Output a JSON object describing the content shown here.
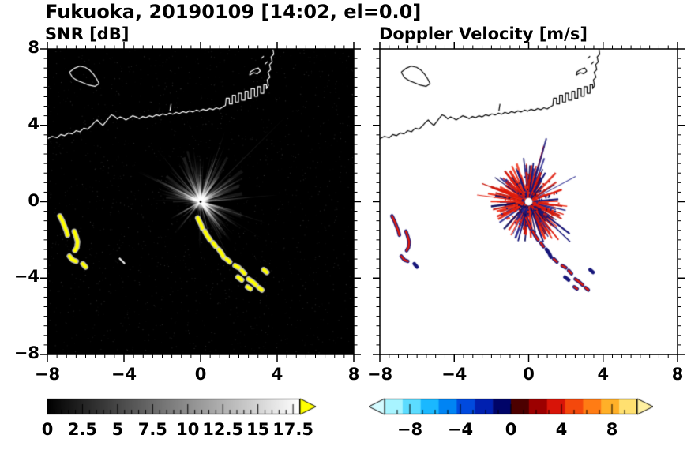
{
  "title": "Fukuoka, 20190109 [14:02, el=0.0]",
  "panels": [
    {
      "title": "SNR [dB]",
      "xtick_labels": [
        "−8",
        "−4",
        "0",
        "4",
        "8"
      ],
      "ytick_labels": [
        "8",
        "4",
        "0",
        "−4",
        "−8"
      ],
      "colorbar_labels": [
        "0",
        "2.5",
        "5",
        "7.5",
        "10",
        "12.5",
        "15",
        "17.5"
      ]
    },
    {
      "title": "Doppler Velocity [m/s]",
      "xtick_labels": [
        "−8",
        "−4",
        "0",
        "4",
        "8"
      ],
      "ytick_labels": [],
      "colorbar_labels": [
        "−8",
        "−4",
        "0",
        "4",
        "8"
      ]
    }
  ],
  "chart_data": [
    {
      "type": "heatmap",
      "title": "SNR [dB]",
      "xlim": [
        -8,
        8
      ],
      "ylim": [
        -8,
        8
      ],
      "xticks": [
        -8,
        -4,
        0,
        4,
        8
      ],
      "yticks": [
        8,
        4,
        0,
        -4,
        -8
      ],
      "minor_tick_step": 0.5,
      "background_color": "#000000",
      "radar_center": [
        0,
        0
      ],
      "colorbar": {
        "range": [
          0,
          18
        ],
        "tick_values": [
          0,
          2.5,
          5,
          7.5,
          10,
          12.5,
          15,
          17.5
        ],
        "minor_step": 0.5,
        "colormap": "grayscale",
        "start_color": "#000000",
        "end_color": "#ffffff",
        "over_arrow_color": "#ffff00"
      },
      "description": "PPI radar SNR: bright radial ground-clutter spokes around radar at origin; strong (>17.5 dB, yellow) echo cells southwest near (-7,-1)..(-6,-3.4) and along a chain from (0,-1) to (3.2,-4.6); white coastline across the north"
    },
    {
      "type": "heatmap",
      "title": "Doppler Velocity [m/s]",
      "xlim": [
        -8,
        8
      ],
      "ylim": [
        -8,
        8
      ],
      "xticks": [
        -8,
        -4,
        0,
        4,
        8
      ],
      "yticks": [
        8,
        4,
        0,
        -4,
        -8
      ],
      "minor_tick_step": 0.5,
      "background_color": "#ffffff",
      "radar_center": [
        0,
        0
      ],
      "colorbar": {
        "range": [
          -10,
          10
        ],
        "tick_values": [
          -8,
          -4,
          0,
          4,
          8
        ],
        "minor_step": 1,
        "colormap": "diverging cyan-blue to red-yellow",
        "colors": [
          "#a8f4ff",
          "#5cdcff",
          "#1ab8ff",
          "#0084f4",
          "#004ade",
          "#0020b0",
          "#000468",
          "#4c0000",
          "#9c0000",
          "#d81408",
          "#f4480c",
          "#ff7c14",
          "#ffb028",
          "#ffe070"
        ],
        "under_arrow_color": "#d4fbff",
        "over_arrow_color": "#fff0a0"
      },
      "description": "Doppler velocity of same scene: mixed positive (red) and negative (dark navy) radial velocities in clutter spokes around the radar; same echo chain and southwest cells with alternating red/navy"
    }
  ],
  "map": {
    "coastline_color_snr": "#ffffff",
    "coastline_color_vel": "#000000",
    "coast_main": [
      [
        -8,
        3.3
      ],
      [
        -7.75,
        3.42
      ],
      [
        -7.5,
        3.35
      ],
      [
        -7.3,
        3.52
      ],
      [
        -7.1,
        3.46
      ],
      [
        -6.9,
        3.6
      ],
      [
        -6.7,
        3.55
      ],
      [
        -6.5,
        3.72
      ],
      [
        -6.3,
        3.66
      ],
      [
        -6.1,
        3.85
      ],
      [
        -5.9,
        3.8
      ],
      [
        -5.7,
        3.98
      ],
      [
        -5.55,
        4.15
      ],
      [
        -5.4,
        4.28
      ],
      [
        -5.25,
        4.12
      ],
      [
        -5.1,
        4.0
      ],
      [
        -4.95,
        4.18
      ],
      [
        -4.8,
        4.38
      ],
      [
        -4.65,
        4.55
      ],
      [
        -4.5,
        4.48
      ],
      [
        -4.35,
        4.34
      ],
      [
        -4.2,
        4.44
      ],
      [
        -4.05,
        4.38
      ],
      [
        -3.9,
        4.28
      ],
      [
        -3.7,
        4.4
      ],
      [
        -3.55,
        4.5
      ],
      [
        -3.38,
        4.44
      ],
      [
        -3.2,
        4.35
      ],
      [
        -3.02,
        4.46
      ],
      [
        -2.85,
        4.4
      ],
      [
        -2.68,
        4.5
      ],
      [
        -2.5,
        4.44
      ],
      [
        -2.32,
        4.55
      ],
      [
        -2.15,
        4.5
      ],
      [
        -1.98,
        4.6
      ],
      [
        -1.8,
        4.54
      ],
      [
        -1.62,
        4.64
      ],
      [
        -1.45,
        4.58
      ],
      [
        -1.28,
        4.68
      ],
      [
        -1.1,
        4.62
      ],
      [
        -0.92,
        4.72
      ],
      [
        -0.75,
        4.66
      ],
      [
        -0.58,
        4.76
      ],
      [
        -0.4,
        4.7
      ],
      [
        -0.22,
        4.8
      ],
      [
        -0.05,
        4.74
      ],
      [
        0.12,
        4.84
      ],
      [
        0.3,
        4.78
      ],
      [
        0.48,
        4.88
      ],
      [
        0.65,
        4.82
      ],
      [
        0.82,
        4.92
      ],
      [
        1.0,
        4.86
      ],
      [
        1.15,
        4.96
      ],
      [
        1.3,
        5.04
      ],
      [
        1.34,
        5.42
      ],
      [
        1.5,
        5.42
      ],
      [
        1.5,
        5.12
      ],
      [
        1.66,
        5.12
      ],
      [
        1.66,
        5.58
      ],
      [
        1.82,
        5.58
      ],
      [
        1.82,
        5.22
      ],
      [
        1.98,
        5.22
      ],
      [
        1.98,
        5.68
      ],
      [
        2.14,
        5.68
      ],
      [
        2.14,
        5.32
      ],
      [
        2.32,
        5.32
      ],
      [
        2.32,
        5.78
      ],
      [
        2.48,
        5.78
      ],
      [
        2.48,
        5.42
      ],
      [
        2.64,
        5.42
      ],
      [
        2.64,
        5.92
      ],
      [
        2.82,
        5.92
      ],
      [
        2.82,
        5.52
      ],
      [
        2.98,
        5.52
      ],
      [
        2.98,
        6.02
      ],
      [
        3.14,
        6.02
      ],
      [
        3.14,
        5.68
      ],
      [
        3.3,
        5.68
      ],
      [
        3.3,
        6.12
      ],
      [
        3.44,
        6.12
      ],
      [
        3.44,
        5.92
      ],
      [
        3.54,
        6.08
      ],
      [
        3.48,
        6.38
      ],
      [
        3.62,
        6.52
      ],
      [
        3.52,
        6.78
      ],
      [
        3.66,
        6.92
      ],
      [
        3.6,
        7.18
      ],
      [
        3.74,
        7.32
      ],
      [
        3.68,
        7.58
      ],
      [
        3.82,
        7.72
      ],
      [
        3.78,
        8.0
      ]
    ],
    "island": [
      [
        -6.85,
        6.78
      ],
      [
        -6.6,
        6.98
      ],
      [
        -6.32,
        7.1
      ],
      [
        -6.02,
        7.04
      ],
      [
        -5.78,
        6.88
      ],
      [
        -5.58,
        6.66
      ],
      [
        -5.42,
        6.42
      ],
      [
        -5.3,
        6.18
      ],
      [
        -5.52,
        6.04
      ],
      [
        -5.82,
        6.1
      ],
      [
        -6.12,
        6.22
      ],
      [
        -6.42,
        6.34
      ],
      [
        -6.68,
        6.5
      ],
      [
        -6.85,
        6.78
      ]
    ],
    "pier": [
      [
        2.56,
        6.62
      ],
      [
        2.76,
        6.76
      ],
      [
        2.96,
        6.7
      ],
      [
        3.12,
        6.84
      ],
      [
        3.02,
        7.0
      ],
      [
        2.82,
        6.94
      ],
      [
        2.6,
        6.8
      ],
      [
        2.56,
        6.62
      ]
    ],
    "marks": [
      [
        [
          3.36,
          7.2
        ],
        [
          3.5,
          7.34
        ]
      ],
      [
        [
          3.16,
          7.5
        ],
        [
          3.3,
          7.62
        ]
      ],
      [
        [
          -1.6,
          4.76
        ],
        [
          -1.54,
          5.12
        ]
      ]
    ]
  },
  "echoes": {
    "colors_snr": {
      "core": "#ffff00",
      "fringe": "#c8c8c8"
    },
    "colors_vel": {
      "positive": "#e01c0c",
      "negative": "#16167a"
    },
    "aircraft": [
      [
        -4.25,
        -2.95
      ],
      [
        -3.95,
        -3.25
      ]
    ],
    "chain": [
      [
        [
          -0.15,
          -0.85
        ],
        [
          0.0,
          -1.15
        ],
        [
          0.1,
          -1.4
        ]
      ],
      [
        [
          0.22,
          -1.55
        ],
        [
          0.36,
          -1.8
        ],
        [
          0.5,
          -2.0
        ]
      ],
      [
        [
          0.65,
          -2.15
        ],
        [
          0.8,
          -2.35
        ]
      ],
      [
        [
          0.95,
          -2.5
        ],
        [
          1.1,
          -2.7
        ],
        [
          1.2,
          -2.9
        ]
      ],
      [
        [
          1.35,
          -3.0
        ],
        [
          1.52,
          -3.15
        ]
      ],
      [
        [
          1.8,
          -3.35
        ],
        [
          2.0,
          -3.46
        ]
      ],
      [
        [
          2.15,
          -3.6
        ],
        [
          2.3,
          -3.76
        ]
      ],
      [
        [
          1.95,
          -3.95
        ],
        [
          2.15,
          -4.1
        ]
      ],
      [
        [
          2.5,
          -4.05
        ],
        [
          2.72,
          -4.2
        ],
        [
          2.9,
          -4.36
        ]
      ],
      [
        [
          2.45,
          -4.46
        ],
        [
          2.6,
          -4.56
        ]
      ],
      [
        [
          3.05,
          -4.5
        ],
        [
          3.2,
          -4.62
        ]
      ],
      [
        [
          3.3,
          -3.56
        ],
        [
          3.46,
          -3.7
        ]
      ]
    ],
    "southwest": [
      [
        [
          -7.35,
          -0.75
        ],
        [
          -7.22,
          -1.0
        ],
        [
          -7.1,
          -1.3
        ],
        [
          -7.0,
          -1.55
        ],
        [
          -6.95,
          -1.75
        ]
      ],
      [
        [
          -6.6,
          -1.55
        ],
        [
          -6.5,
          -1.82
        ],
        [
          -6.42,
          -2.1
        ],
        [
          -6.46,
          -2.4
        ],
        [
          -6.56,
          -2.56
        ]
      ],
      [
        [
          -6.85,
          -2.85
        ],
        [
          -6.68,
          -3.05
        ],
        [
          -6.5,
          -3.12
        ]
      ],
      [
        [
          -6.15,
          -3.25
        ],
        [
          -6.0,
          -3.42
        ]
      ]
    ]
  }
}
